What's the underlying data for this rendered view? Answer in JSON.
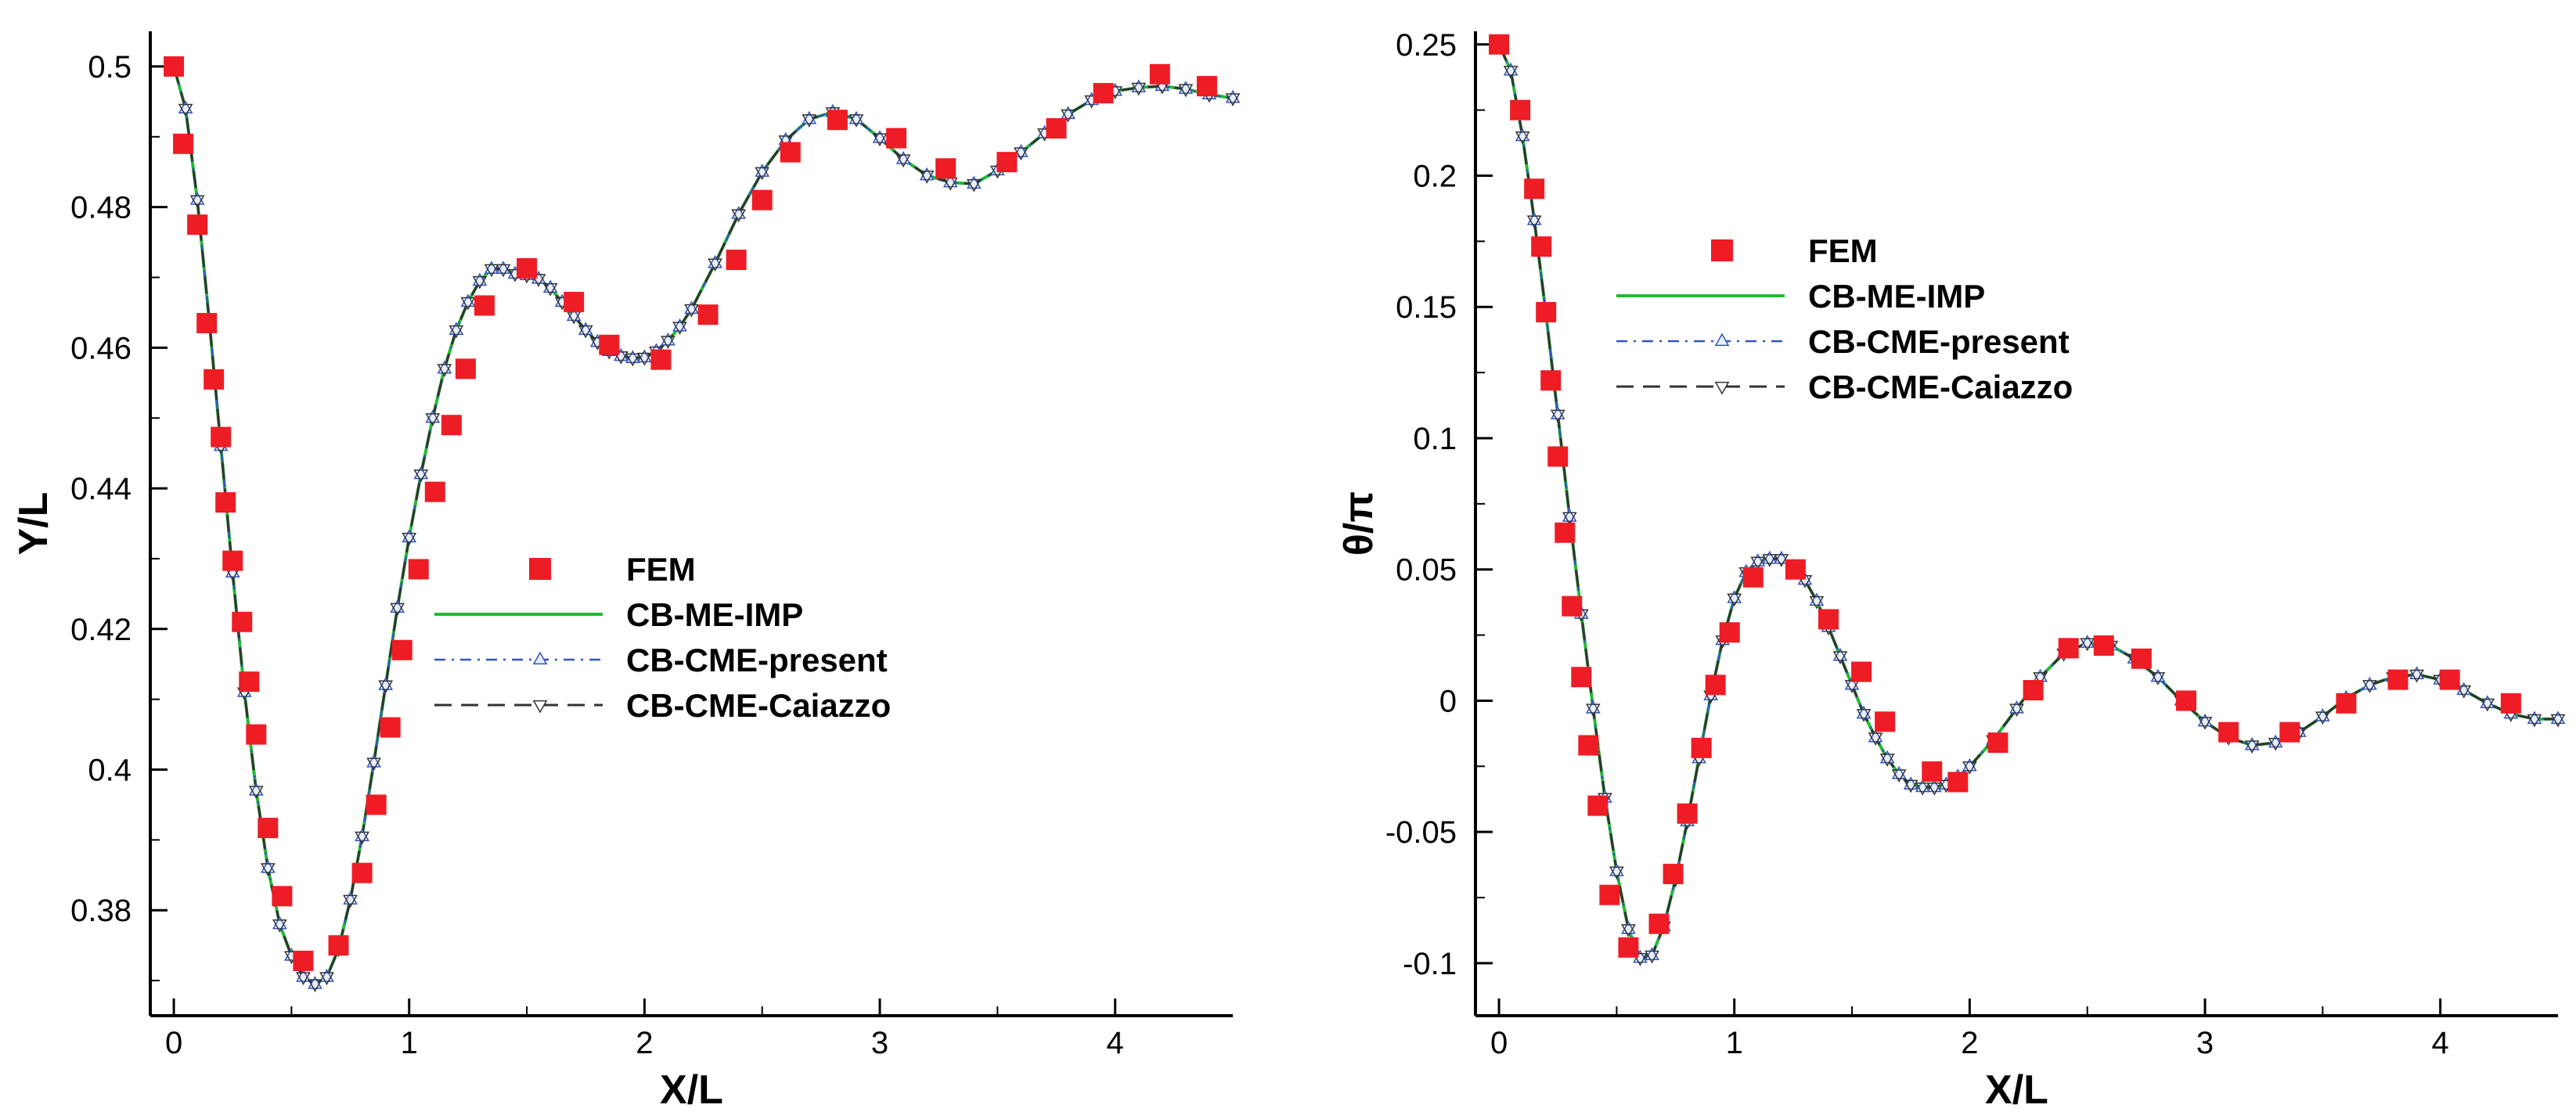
{
  "colors": {
    "fem": "#ee1c25",
    "me_imp": "#22bb33",
    "cme_present": "#3355bb",
    "cme_caiazzo": "#333333",
    "marker_face": "#e8eef8"
  },
  "chart_data": [
    {
      "type": "line",
      "xlabel": "X/L",
      "ylabel": "Y/L",
      "xlim": [
        -0.1,
        4.5
      ],
      "ylim": [
        0.365,
        0.505
      ],
      "xticks": [
        "0",
        "1",
        "2",
        "3",
        "4"
      ],
      "yticks": [
        "0.38",
        "0.4",
        "0.42",
        "0.44",
        "0.46",
        "0.48",
        "0.5"
      ],
      "legend": [
        "FEM",
        "CB-ME-IMP",
        "CB-CME-present",
        "CB-CME-Caiazzo"
      ],
      "legend_position": "center-right",
      "series": [
        {
          "name": "FEM",
          "x": [
            0.0,
            0.04,
            0.1,
            0.14,
            0.17,
            0.2,
            0.22,
            0.25,
            0.29,
            0.32,
            0.35,
            0.4,
            0.46,
            0.55,
            0.7,
            0.8,
            0.86,
            0.92,
            0.97,
            1.04,
            1.11,
            1.18,
            1.24,
            1.32,
            1.5,
            1.7,
            1.85,
            2.07,
            2.27,
            2.39,
            2.5,
            2.62,
            2.82,
            3.07,
            3.28,
            3.54,
            3.75,
            3.95,
            4.19,
            4.39
          ],
          "y": [
            0.5,
            0.489,
            0.4775,
            0.4635,
            0.4555,
            0.4473,
            0.438,
            0.4297,
            0.421,
            0.4125,
            0.405,
            0.3917,
            0.382,
            0.3728,
            0.375,
            0.3853,
            0.395,
            0.406,
            0.417,
            0.4285,
            0.4395,
            0.449,
            0.457,
            0.466,
            0.4713,
            0.4665,
            0.4604,
            0.4583,
            0.4647,
            0.4725,
            0.481,
            0.4878,
            0.4924,
            0.4898,
            0.4855,
            0.4864,
            0.4912,
            0.4962,
            0.4989,
            0.4972
          ]
        },
        {
          "name": "CB-ME-IMP",
          "x": [
            0.0,
            0.05,
            0.1,
            0.15,
            0.2,
            0.25,
            0.3,
            0.35,
            0.4,
            0.45,
            0.5,
            0.55,
            0.6,
            0.65,
            0.7,
            0.75,
            0.8,
            0.85,
            0.9,
            0.95,
            1.0,
            1.05,
            1.1,
            1.15,
            1.2,
            1.25,
            1.3,
            1.35,
            1.4,
            1.45,
            1.5,
            1.55,
            1.6,
            1.65,
            1.7,
            1.75,
            1.8,
            1.85,
            1.9,
            1.95,
            2.0,
            2.05,
            2.1,
            2.15,
            2.2,
            2.3,
            2.4,
            2.5,
            2.6,
            2.7,
            2.8,
            2.9,
            3.0,
            3.1,
            3.2,
            3.3,
            3.4,
            3.5,
            3.6,
            3.7,
            3.8,
            3.9,
            4.0,
            4.1,
            4.2,
            4.3,
            4.4,
            4.5
          ],
          "y": [
            0.5,
            0.494,
            0.481,
            0.464,
            0.446,
            0.428,
            0.411,
            0.397,
            0.386,
            0.378,
            0.3735,
            0.3705,
            0.3695,
            0.3705,
            0.3745,
            0.3815,
            0.3905,
            0.401,
            0.412,
            0.423,
            0.433,
            0.442,
            0.45,
            0.457,
            0.4625,
            0.4665,
            0.4695,
            0.4712,
            0.4712,
            0.4705,
            0.4703,
            0.4698,
            0.4685,
            0.4665,
            0.4645,
            0.4625,
            0.4608,
            0.4595,
            0.4588,
            0.4585,
            0.4586,
            0.4595,
            0.461,
            0.463,
            0.4655,
            0.472,
            0.479,
            0.485,
            0.4895,
            0.4925,
            0.4935,
            0.4925,
            0.4898,
            0.4868,
            0.4845,
            0.4835,
            0.4833,
            0.4852,
            0.4878,
            0.4905,
            0.4932,
            0.4952,
            0.4965,
            0.497,
            0.4972,
            0.4968,
            0.496,
            0.4955
          ]
        },
        {
          "name": "CB-CME-present",
          "x": [
            0.0,
            0.05,
            0.1,
            0.15,
            0.2,
            0.25,
            0.3,
            0.35,
            0.4,
            0.45,
            0.5,
            0.55,
            0.6,
            0.65,
            0.7,
            0.75,
            0.8,
            0.85,
            0.9,
            0.95,
            1.0,
            1.05,
            1.1,
            1.15,
            1.2,
            1.25,
            1.3,
            1.35,
            1.4,
            1.45,
            1.5,
            1.55,
            1.6,
            1.65,
            1.7,
            1.75,
            1.8,
            1.85,
            1.9,
            1.95,
            2.0,
            2.05,
            2.1,
            2.15,
            2.2,
            2.3,
            2.4,
            2.5,
            2.6,
            2.7,
            2.8,
            2.9,
            3.0,
            3.1,
            3.2,
            3.3,
            3.4,
            3.5,
            3.6,
            3.7,
            3.8,
            3.9,
            4.0,
            4.1,
            4.2,
            4.3,
            4.4,
            4.5
          ],
          "y": [
            0.5,
            0.494,
            0.481,
            0.464,
            0.446,
            0.428,
            0.411,
            0.397,
            0.386,
            0.378,
            0.3735,
            0.3705,
            0.3695,
            0.3705,
            0.3745,
            0.3815,
            0.3905,
            0.401,
            0.412,
            0.423,
            0.433,
            0.442,
            0.45,
            0.457,
            0.4625,
            0.4665,
            0.4695,
            0.4712,
            0.4712,
            0.4705,
            0.4703,
            0.4698,
            0.4685,
            0.4665,
            0.4645,
            0.4625,
            0.4608,
            0.4595,
            0.4588,
            0.4585,
            0.4586,
            0.4595,
            0.461,
            0.463,
            0.4655,
            0.472,
            0.479,
            0.485,
            0.4895,
            0.4925,
            0.4935,
            0.4925,
            0.4898,
            0.4868,
            0.4845,
            0.4835,
            0.4833,
            0.4852,
            0.4878,
            0.4905,
            0.4932,
            0.4952,
            0.4965,
            0.497,
            0.4972,
            0.4968,
            0.496,
            0.4955
          ]
        },
        {
          "name": "CB-CME-Caiazzo",
          "x": [
            0.0,
            0.05,
            0.1,
            0.15,
            0.2,
            0.25,
            0.3,
            0.35,
            0.4,
            0.45,
            0.5,
            0.55,
            0.6,
            0.65,
            0.7,
            0.75,
            0.8,
            0.85,
            0.9,
            0.95,
            1.0,
            1.05,
            1.1,
            1.15,
            1.2,
            1.25,
            1.3,
            1.35,
            1.4,
            1.45,
            1.5,
            1.55,
            1.6,
            1.65,
            1.7,
            1.75,
            1.8,
            1.85,
            1.9,
            1.95,
            2.0,
            2.05,
            2.1,
            2.15,
            2.2,
            2.3,
            2.4,
            2.5,
            2.6,
            2.7,
            2.8,
            2.9,
            3.0,
            3.1,
            3.2,
            3.3,
            3.4,
            3.5,
            3.6,
            3.7,
            3.8,
            3.9,
            4.0,
            4.1,
            4.2,
            4.3,
            4.4,
            4.5
          ],
          "y": [
            0.5,
            0.494,
            0.481,
            0.464,
            0.446,
            0.428,
            0.411,
            0.397,
            0.386,
            0.378,
            0.3735,
            0.3705,
            0.3695,
            0.3705,
            0.3745,
            0.3815,
            0.3905,
            0.401,
            0.412,
            0.423,
            0.433,
            0.442,
            0.45,
            0.457,
            0.4625,
            0.4665,
            0.4695,
            0.4712,
            0.4712,
            0.4705,
            0.4703,
            0.4698,
            0.4685,
            0.4665,
            0.4645,
            0.4625,
            0.4608,
            0.4595,
            0.4588,
            0.4585,
            0.4586,
            0.4595,
            0.461,
            0.463,
            0.4655,
            0.472,
            0.479,
            0.485,
            0.4895,
            0.4925,
            0.4935,
            0.4925,
            0.4898,
            0.4868,
            0.4845,
            0.4835,
            0.4833,
            0.4852,
            0.4878,
            0.4905,
            0.4932,
            0.4952,
            0.4965,
            0.497,
            0.4972,
            0.4968,
            0.496,
            0.4955
          ]
        }
      ]
    },
    {
      "type": "line",
      "xlabel": "X/L",
      "ylabel": "θ/π",
      "xlim": [
        -0.1,
        4.5
      ],
      "ylim": [
        -0.12,
        0.255
      ],
      "xticks": [
        "0",
        "1",
        "2",
        "3",
        "4"
      ],
      "yticks": [
        "-0.1",
        "-0.05",
        "0",
        "0.05",
        "0.1",
        "0.15",
        "0.2",
        "0.25"
      ],
      "legend": [
        "FEM",
        "CB-ME-IMP",
        "CB-CME-present",
        "CB-CME-Caiazzo"
      ],
      "legend_position": "top-right",
      "series": [
        {
          "name": "FEM",
          "x": [
            0.0,
            0.09,
            0.15,
            0.18,
            0.2,
            0.22,
            0.25,
            0.28,
            0.31,
            0.35,
            0.38,
            0.42,
            0.47,
            0.55,
            0.68,
            0.74,
            0.8,
            0.86,
            0.92,
            0.98,
            1.08,
            1.26,
            1.4,
            1.54,
            1.64,
            1.84,
            1.95,
            2.12,
            2.27,
            2.42,
            2.57,
            2.73,
            2.92,
            3.1,
            3.36,
            3.6,
            3.82,
            4.04,
            4.3
          ],
          "y": [
            0.25,
            0.225,
            0.195,
            0.173,
            0.148,
            0.122,
            0.093,
            0.064,
            0.036,
            0.009,
            -0.017,
            -0.04,
            -0.074,
            -0.094,
            -0.085,
            -0.066,
            -0.043,
            -0.018,
            0.006,
            0.026,
            0.047,
            0.05,
            0.031,
            0.011,
            -0.008,
            -0.027,
            -0.031,
            -0.016,
            0.004,
            0.02,
            0.021,
            0.016,
            0.0,
            -0.012,
            -0.012,
            -0.001,
            0.008,
            0.008,
            -0.001
          ]
        },
        {
          "name": "CB-ME-IMP",
          "x": [
            0.0,
            0.05,
            0.1,
            0.15,
            0.2,
            0.25,
            0.3,
            0.35,
            0.4,
            0.45,
            0.5,
            0.55,
            0.6,
            0.65,
            0.7,
            0.75,
            0.8,
            0.85,
            0.9,
            0.95,
            1.0,
            1.05,
            1.1,
            1.15,
            1.2,
            1.25,
            1.3,
            1.35,
            1.4,
            1.45,
            1.5,
            1.55,
            1.6,
            1.65,
            1.7,
            1.75,
            1.8,
            1.85,
            1.9,
            1.95,
            2.0,
            2.1,
            2.2,
            2.3,
            2.4,
            2.5,
            2.6,
            2.7,
            2.8,
            2.9,
            3.0,
            3.1,
            3.2,
            3.3,
            3.4,
            3.5,
            3.6,
            3.7,
            3.8,
            3.9,
            4.0,
            4.1,
            4.2,
            4.3,
            4.4,
            4.5
          ],
          "y": [
            0.25,
            0.24,
            0.215,
            0.183,
            0.147,
            0.109,
            0.07,
            0.033,
            -0.003,
            -0.037,
            -0.065,
            -0.087,
            -0.098,
            -0.097,
            -0.086,
            -0.068,
            -0.046,
            -0.022,
            0.002,
            0.023,
            0.039,
            0.049,
            0.053,
            0.054,
            0.054,
            0.051,
            0.046,
            0.038,
            0.028,
            0.017,
            0.006,
            -0.005,
            -0.014,
            -0.022,
            -0.028,
            -0.032,
            -0.033,
            -0.033,
            -0.032,
            -0.029,
            -0.025,
            -0.015,
            -0.003,
            0.009,
            0.018,
            0.022,
            0.021,
            0.016,
            0.009,
            0.0,
            -0.008,
            -0.014,
            -0.017,
            -0.016,
            -0.012,
            -0.006,
            0.001,
            0.006,
            0.009,
            0.01,
            0.008,
            0.004,
            -0.001,
            -0.005,
            -0.007,
            -0.007
          ]
        },
        {
          "name": "CB-CME-present",
          "x": [
            0.0,
            0.05,
            0.1,
            0.15,
            0.2,
            0.25,
            0.3,
            0.35,
            0.4,
            0.45,
            0.5,
            0.55,
            0.6,
            0.65,
            0.7,
            0.75,
            0.8,
            0.85,
            0.9,
            0.95,
            1.0,
            1.05,
            1.1,
            1.15,
            1.2,
            1.25,
            1.3,
            1.35,
            1.4,
            1.45,
            1.5,
            1.55,
            1.6,
            1.65,
            1.7,
            1.75,
            1.8,
            1.85,
            1.9,
            1.95,
            2.0,
            2.1,
            2.2,
            2.3,
            2.4,
            2.5,
            2.6,
            2.7,
            2.8,
            2.9,
            3.0,
            3.1,
            3.2,
            3.3,
            3.4,
            3.5,
            3.6,
            3.7,
            3.8,
            3.9,
            4.0,
            4.1,
            4.2,
            4.3,
            4.4,
            4.5
          ],
          "y": [
            0.25,
            0.24,
            0.215,
            0.183,
            0.147,
            0.109,
            0.07,
            0.033,
            -0.003,
            -0.037,
            -0.065,
            -0.087,
            -0.098,
            -0.097,
            -0.086,
            -0.068,
            -0.046,
            -0.022,
            0.002,
            0.023,
            0.039,
            0.049,
            0.053,
            0.054,
            0.054,
            0.051,
            0.046,
            0.038,
            0.028,
            0.017,
            0.006,
            -0.005,
            -0.014,
            -0.022,
            -0.028,
            -0.032,
            -0.033,
            -0.033,
            -0.032,
            -0.029,
            -0.025,
            -0.015,
            -0.003,
            0.009,
            0.018,
            0.022,
            0.021,
            0.016,
            0.009,
            0.0,
            -0.008,
            -0.014,
            -0.017,
            -0.016,
            -0.012,
            -0.006,
            0.001,
            0.006,
            0.009,
            0.01,
            0.008,
            0.004,
            -0.001,
            -0.005,
            -0.007,
            -0.007
          ]
        },
        {
          "name": "CB-CME-Caiazzo",
          "x": [
            0.0,
            0.05,
            0.1,
            0.15,
            0.2,
            0.25,
            0.3,
            0.35,
            0.4,
            0.45,
            0.5,
            0.55,
            0.6,
            0.65,
            0.7,
            0.75,
            0.8,
            0.85,
            0.9,
            0.95,
            1.0,
            1.05,
            1.1,
            1.15,
            1.2,
            1.25,
            1.3,
            1.35,
            1.4,
            1.45,
            1.5,
            1.55,
            1.6,
            1.65,
            1.7,
            1.75,
            1.8,
            1.85,
            1.9,
            1.95,
            2.0,
            2.1,
            2.2,
            2.3,
            2.4,
            2.5,
            2.6,
            2.7,
            2.8,
            2.9,
            3.0,
            3.1,
            3.2,
            3.3,
            3.4,
            3.5,
            3.6,
            3.7,
            3.8,
            3.9,
            4.0,
            4.1,
            4.2,
            4.3,
            4.4,
            4.5
          ],
          "y": [
            0.25,
            0.24,
            0.215,
            0.183,
            0.147,
            0.109,
            0.07,
            0.033,
            -0.003,
            -0.037,
            -0.065,
            -0.087,
            -0.098,
            -0.097,
            -0.086,
            -0.068,
            -0.046,
            -0.022,
            0.002,
            0.023,
            0.039,
            0.049,
            0.053,
            0.054,
            0.054,
            0.051,
            0.046,
            0.038,
            0.028,
            0.017,
            0.006,
            -0.005,
            -0.014,
            -0.022,
            -0.028,
            -0.032,
            -0.033,
            -0.033,
            -0.032,
            -0.029,
            -0.025,
            -0.015,
            -0.003,
            0.009,
            0.018,
            0.022,
            0.021,
            0.016,
            0.009,
            0.0,
            -0.008,
            -0.014,
            -0.017,
            -0.016,
            -0.012,
            -0.006,
            0.001,
            0.006,
            0.009,
            0.01,
            0.008,
            0.004,
            -0.001,
            -0.005,
            -0.007,
            -0.007
          ]
        }
      ]
    }
  ]
}
